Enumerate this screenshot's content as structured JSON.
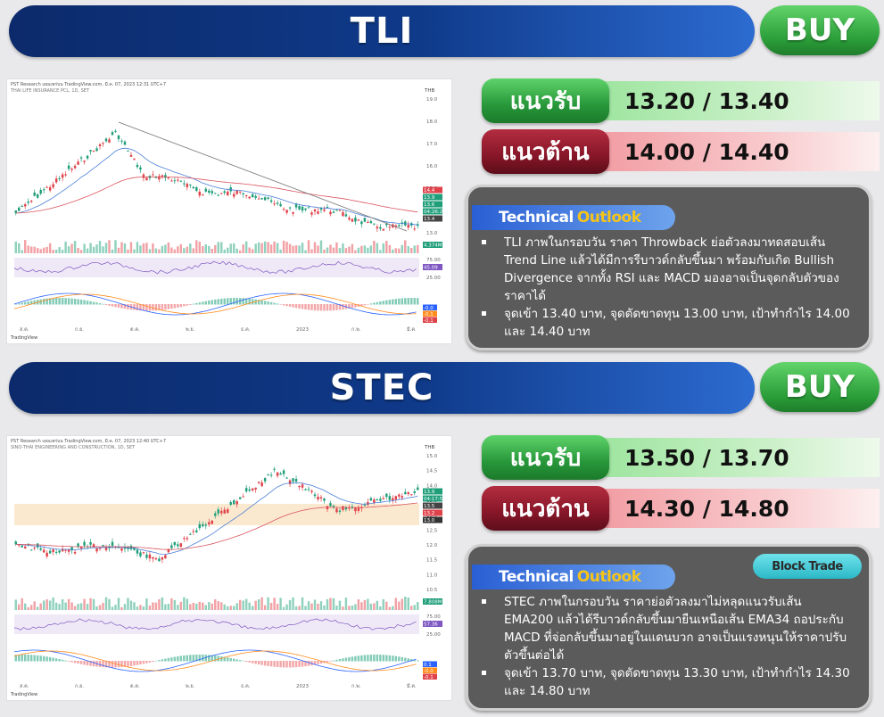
{
  "stocks": [
    {
      "ticker": "TLI",
      "signal": "BUY",
      "support_label": "แนวรับ",
      "support": "13.20 / 13.40",
      "resistance_label": "แนวต้าน",
      "resistance": "14.00 / 14.40",
      "outlook_title_1": "Technical",
      "outlook_title_2": "Outlook",
      "bullets": [
        "TLI ภาพในกรอบวัน ราคา Throwback ย่อตัวลงมาทดสอบเส้น Trend Line แล้วได้มีการรีบาวด์กลับขึ้นมา พร้อมกับเกิด Bullish Divergence จากทั้ง RSI และ MACD มองอาจเป็นจุดกลับตัวของราคาได้",
        "จุดเข้า 13.40 บาท, จุดตัดขาดทุน 13.00 บาท, เป้าทำกำไร 14.00 และ 14.40 บาท"
      ],
      "chart": {
        "header": "PST Research เผยแพร่บน TradingView.com, มี.ค. 07, 2023 12:31 UTC+7",
        "subheader": "THAI LIFE INSURANCE PCL, 1D, SET",
        "currency": "THB",
        "price_ticks": [
          "19.0",
          "18.0",
          "17.0",
          "16.0",
          "15.0",
          "14.0",
          "13.0"
        ],
        "rsi_ticks": [
          "75.00",
          "25.00"
        ],
        "price_tags": [
          "14.4",
          "13.9",
          "13.6",
          "04:26:27",
          "13.4"
        ],
        "vol_tag": "4.374M",
        "rsi_tag": "45.09",
        "macd_tags": [
          "-0.0",
          "-0.1",
          "-0.1"
        ],
        "time_labels": [
          "ส.ค.",
          "ก.ย.",
          "ต.ค.",
          "พ.ย.",
          "ธ.ค.",
          "2023",
          "ก.พ.",
          "มี.ค."
        ],
        "tv_label": "TradingView",
        "colors": {
          "ema_short": "#4a7fd6",
          "ema_long": "#d9545e",
          "trend": "#777777"
        }
      }
    },
    {
      "ticker": "STEC",
      "signal": "BUY",
      "support_label": "แนวรับ",
      "support": "13.50 / 13.70",
      "resistance_label": "แนวต้าน",
      "resistance": "14.30 / 14.80",
      "outlook_title_1": "Technical",
      "outlook_title_2": "Outlook",
      "block_trade": "Block Trade",
      "bullets": [
        "STEC ภาพในกรอบวัน ราคาย่อตัวลงมาไม่หลุดแนวรับเส้น EMA200 แล้วได้รีบาวด์กลับขึ้นมายืนเหนือเส้น EMA34 ถอประกับ MACD ที่จ่อกลับขึ้นมาอยู่ในแดนบวก อาจเป็นแรงหนุนให้ราคาปรับตัวขึ้นต่อได้",
        "จุดเข้า 13.70 บาท, จุดตัดขาดทุน 13.30 บาท, เป้าทำกำไร 14.30 และ 14.80 บาท"
      ],
      "chart": {
        "header": "PST Research เผยแพร่บน TradingView.com, มี.ค. 07, 2023 12:40 UTC+7",
        "subheader": "SINO-THAI ENGINEERING AND CONSTRUCTION, 1D, SET",
        "currency": "THB",
        "price_ticks": [
          "15.0",
          "14.5",
          "14.0",
          "13.5",
          "13.0",
          "12.5",
          "12.0",
          "11.5",
          "11.0",
          "10.5"
        ],
        "rsi_ticks": [
          "75.00",
          "25.00"
        ],
        "price_tags": [
          "13.9",
          "04:17:50",
          "13.5",
          "13.2",
          "13.0"
        ],
        "vol_tag": "7.808M",
        "rsi_tag": "57.36",
        "macd_tags": [
          "0.1",
          "-0.0",
          "-0.1"
        ],
        "time_labels": [
          "ส.ค.",
          "ก.ย.",
          "ต.ค.",
          "พ.ย.",
          "ธ.ค.",
          "2023",
          "ก.พ.",
          "มี.ค."
        ],
        "tv_label": "TradingView",
        "colors": {
          "ema_short": "#4a7fd6",
          "ema_long": "#d9545e",
          "trend": "#777777"
        }
      }
    }
  ]
}
